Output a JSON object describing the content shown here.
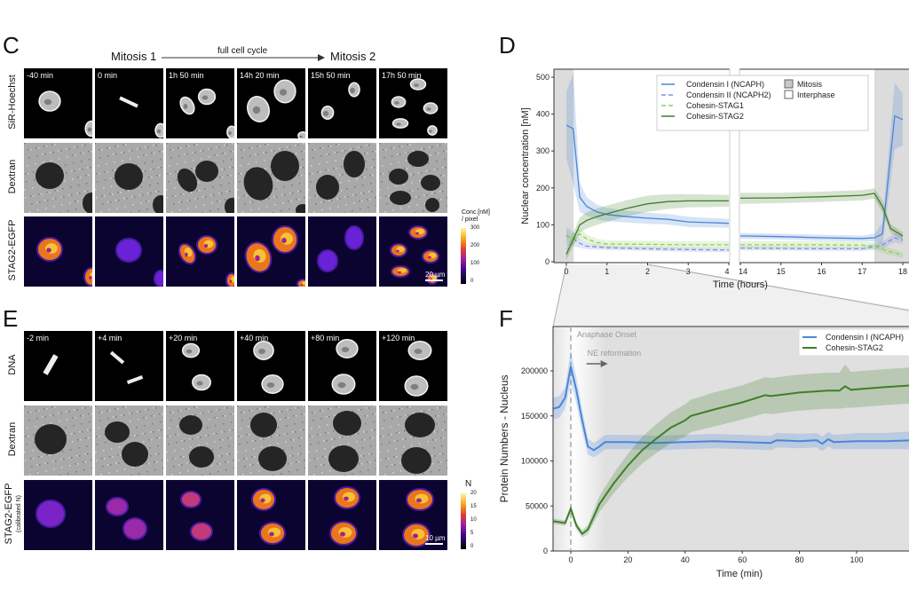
{
  "panels": {
    "C": {
      "label": "C",
      "header": {
        "left": "Mitosis 1",
        "arrow_text": "full cell cycle",
        "right": "Mitosis 2"
      },
      "timepoints": [
        "-40 min",
        "0 min",
        "1h 50 min",
        "14h 20 min",
        "15h 50 min",
        "17h 50 min"
      ],
      "rows": [
        "SiR-Hoechst",
        "Dextran",
        "STAG2-EGFP"
      ],
      "colorbar": {
        "title_line1": "Conc.[nM]",
        "title_line2": "/ pixel",
        "ticks": [
          "300",
          "200",
          "100",
          "0"
        ]
      },
      "scale_bar": "20 µm"
    },
    "D": {
      "label": "D"
    },
    "E": {
      "label": "E",
      "timepoints": [
        "-2 min",
        "+4 min",
        "+20 min",
        "+40 min",
        "+80 min",
        "+120 min"
      ],
      "rows": [
        "DNA",
        "Dextran",
        "STAG2-EGFP"
      ],
      "row_sublabel": "(calibrated N)",
      "colorbar": {
        "title_line1": "N",
        "ticks": [
          "20",
          "15",
          "10",
          "5",
          "0"
        ]
      },
      "scale_bar": "10 µm"
    },
    "F": {
      "label": "F"
    }
  },
  "chart_data": [
    {
      "id": "D",
      "type": "line",
      "xlabel": "Time (hours)",
      "ylabel": "Nuclear concentration [nM]",
      "ylim": [
        0,
        520
      ],
      "yticks": [
        0,
        100,
        200,
        300,
        400,
        500
      ],
      "x_broken_axis": {
        "segment1": [
          0,
          4
        ],
        "segment2": [
          14,
          18
        ]
      },
      "xticks": [
        0,
        1,
        2,
        3,
        4,
        14,
        15,
        16,
        17,
        18
      ],
      "shaded_regions": [
        {
          "name": "Mitosis",
          "from": -0.25,
          "to": 0.17
        },
        {
          "name": "Mitosis",
          "from": 17.3,
          "to": 18.2
        }
      ],
      "legend": {
        "placement": "top-center",
        "shading": [
          "Mitosis",
          "Interphase"
        ]
      },
      "series": [
        {
          "name": "Condensin I (NCAPH)",
          "color": "#4a86d8",
          "style": "solid",
          "x": [
            0,
            0.17,
            0.33,
            0.5,
            0.75,
            1,
            1.5,
            2,
            2.5,
            3,
            3.5,
            4,
            14,
            15,
            16,
            17,
            17.3,
            17.5,
            17.8,
            18
          ],
          "y": [
            370,
            360,
            175,
            150,
            135,
            128,
            122,
            118,
            115,
            108,
            106,
            104,
            70,
            68,
            65,
            63,
            65,
            75,
            395,
            385
          ],
          "sd": [
            90,
            150,
            40,
            25,
            20,
            18,
            16,
            15,
            14,
            14,
            13,
            12,
            8,
            8,
            8,
            8,
            10,
            30,
            90,
            70
          ]
        },
        {
          "name": "Condensin II (NCAPH2)",
          "color": "#7d8fe0",
          "style": "dashed",
          "x": [
            0,
            0.17,
            0.33,
            0.5,
            1,
            2,
            3,
            4,
            14,
            15,
            16,
            17,
            17.5,
            17.8,
            18
          ],
          "y": [
            70,
            62,
            50,
            42,
            38,
            35,
            33,
            32,
            37,
            36,
            35,
            35,
            45,
            65,
            58
          ],
          "sd": [
            25,
            20,
            12,
            8,
            6,
            6,
            6,
            6,
            6,
            6,
            6,
            6,
            10,
            12,
            10
          ]
        },
        {
          "name": "Cohesin-STAG1",
          "color": "#8ccf5a",
          "style": "dashed",
          "x": [
            0,
            0.17,
            0.33,
            0.5,
            0.75,
            1,
            2,
            3,
            4,
            14,
            15,
            16,
            17,
            17.3,
            17.6,
            18
          ],
          "y": [
            72,
            60,
            75,
            62,
            52,
            48,
            47,
            46,
            46,
            46,
            46,
            46,
            45,
            42,
            30,
            18
          ],
          "sd": [
            15,
            15,
            15,
            12,
            10,
            10,
            10,
            10,
            10,
            10,
            10,
            10,
            10,
            10,
            10,
            8
          ]
        },
        {
          "name": "Cohesin-STAG2",
          "color": "#3f7f2a",
          "style": "solid",
          "x": [
            0,
            0.17,
            0.33,
            0.5,
            0.75,
            1,
            1.5,
            2,
            2.5,
            3,
            4,
            14,
            15,
            16,
            17,
            17.3,
            17.5,
            17.7,
            18
          ],
          "y": [
            20,
            60,
            100,
            112,
            122,
            130,
            145,
            157,
            163,
            165,
            165,
            172,
            173,
            176,
            180,
            185,
            150,
            90,
            70
          ],
          "sd": [
            15,
            18,
            20,
            22,
            22,
            22,
            22,
            22,
            20,
            18,
            16,
            15,
            14,
            14,
            14,
            14,
            16,
            12,
            10
          ]
        }
      ]
    },
    {
      "id": "F",
      "type": "line",
      "xlabel": "Time (min)",
      "ylabel": "Protein Numbers - Nucleus",
      "xlim": [
        -6,
        123
      ],
      "ylim": [
        0,
        250000
      ],
      "xticks": [
        0,
        20,
        40,
        60,
        80,
        100
      ],
      "yticks": [
        0,
        50000,
        100000,
        150000,
        200000
      ],
      "annotations": [
        {
          "text": "Anaphase Onset",
          "x": 0
        },
        {
          "text": "NE reformation",
          "x": 3
        }
      ],
      "legend": {
        "placement": "top-right"
      },
      "series": [
        {
          "name": "Condensin I (NCAPH)",
          "color": "#4a86d8",
          "x": [
            -6,
            -4,
            -2,
            0,
            2,
            4,
            6,
            8,
            10,
            12,
            20,
            30,
            40,
            50,
            60,
            70,
            72,
            80,
            86,
            88,
            90,
            92,
            100,
            110,
            120,
            123
          ],
          "y": [
            158000,
            160000,
            170000,
            205000,
            178000,
            145000,
            116000,
            112000,
            116000,
            121000,
            121000,
            120000,
            121000,
            122000,
            121000,
            120000,
            123000,
            122000,
            123000,
            119000,
            124000,
            121000,
            122000,
            122000,
            123000,
            125000
          ],
          "sd": [
            12000,
            12000,
            12000,
            18000,
            15000,
            12000,
            9000,
            8000,
            8000,
            8000,
            8000,
            8000,
            8000,
            8000,
            8000,
            8000,
            8000,
            8000,
            8000,
            8000,
            8000,
            8000,
            9000,
            9000,
            10000,
            10000
          ]
        },
        {
          "name": "Cohesin-STAG2",
          "color": "#3f7f2a",
          "x": [
            -6,
            -2,
            0,
            2,
            4,
            6,
            8,
            10,
            15,
            20,
            25,
            30,
            35,
            40,
            42,
            50,
            60,
            68,
            70,
            80,
            90,
            94,
            96,
            98,
            110,
            120,
            123
          ],
          "y": [
            33000,
            31000,
            47000,
            28000,
            19000,
            24000,
            38000,
            52000,
            75000,
            95000,
            112000,
            125000,
            137000,
            145000,
            150000,
            157000,
            165000,
            173000,
            172000,
            176000,
            178000,
            178000,
            183000,
            179000,
            182000,
            184000,
            183000
          ],
          "sd": [
            3000,
            3000,
            4000,
            4000,
            4000,
            5000,
            7000,
            9000,
            11000,
            13000,
            15000,
            16000,
            17000,
            18000,
            18000,
            19000,
            19000,
            20000,
            20000,
            20000,
            20000,
            20000,
            24000,
            20000,
            20000,
            20000,
            20000
          ]
        }
      ]
    }
  ]
}
